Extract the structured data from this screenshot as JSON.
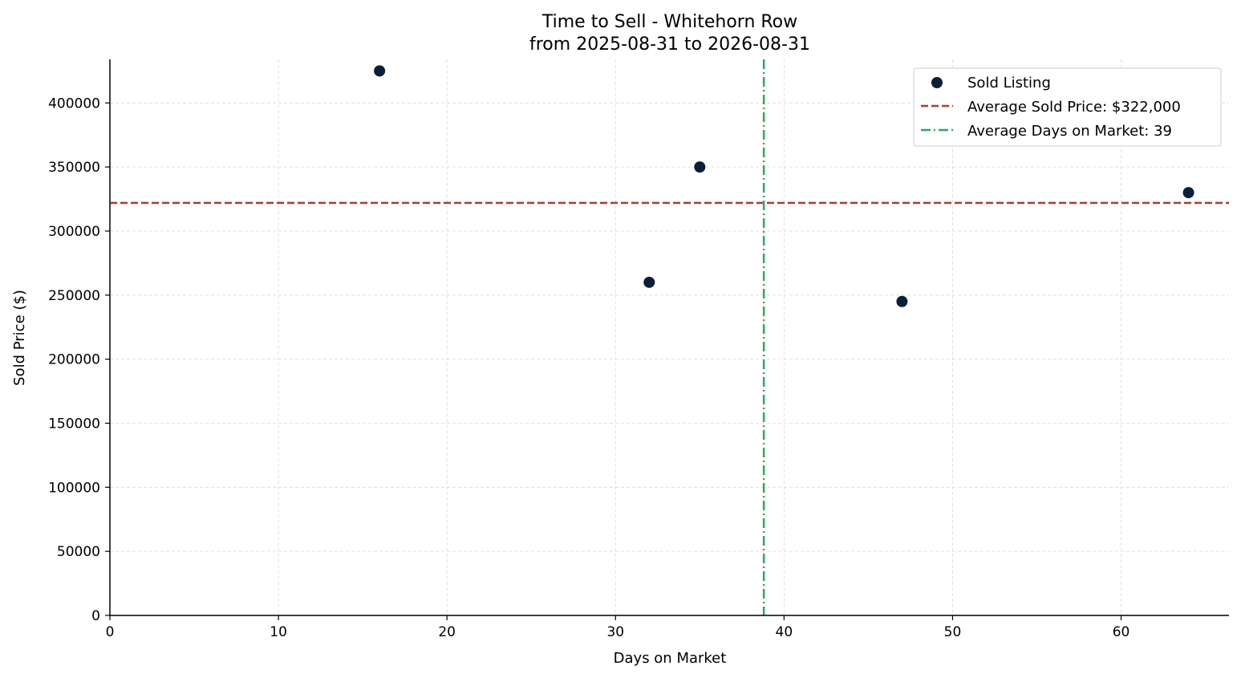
{
  "chart_data": {
    "type": "scatter",
    "title": "Time to Sell - Whitehorn Row",
    "subtitle": "from 2025-08-31 to 2026-08-31",
    "xlabel": "Days on Market",
    "ylabel": "Sold Price ($)",
    "xlim": [
      0,
      66.4
    ],
    "ylim": [
      0,
      434000
    ],
    "x_ticks": [
      0,
      10,
      20,
      30,
      40,
      50,
      60
    ],
    "y_ticks": [
      0,
      50000,
      100000,
      150000,
      200000,
      250000,
      300000,
      350000,
      400000
    ],
    "grid": true,
    "legend_position": "top-right",
    "series": [
      {
        "name": "Sold Listing",
        "points": [
          {
            "x": 16,
            "y": 425000
          },
          {
            "x": 32,
            "y": 260000
          },
          {
            "x": 35,
            "y": 350000
          },
          {
            "x": 47,
            "y": 245000
          },
          {
            "x": 64,
            "y": 330000
          }
        ]
      }
    ],
    "reference_lines": [
      {
        "label": "Average Sold Price: $322,000",
        "orientation": "horizontal",
        "value": 322000
      },
      {
        "label": "Average Days on Market: 39",
        "orientation": "vertical",
        "value": 38.8
      }
    ],
    "colors": {
      "points": "#0b1f3a",
      "avg_price": "#b03a2e",
      "avg_days": "#27ae60",
      "grid": "#d9d9d9",
      "axis": "#000000"
    }
  }
}
